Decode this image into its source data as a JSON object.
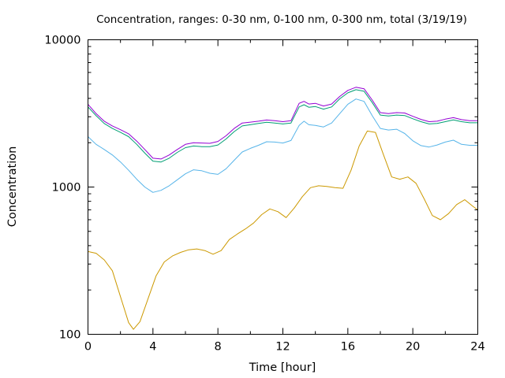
{
  "chart_data": {
    "type": "line",
    "title": "Concentration, ranges: 0-30 nm, 0-100 nm, 0-300 nm, total (3/19/19)",
    "xlabel": "Time [hour]",
    "ylabel": "Concentration",
    "xlim": [
      0,
      24
    ],
    "ylim": [
      100,
      10000
    ],
    "yscale": "log",
    "grid": false,
    "legend": "none",
    "x_ticks": [
      "0",
      "4",
      "8",
      "12",
      "16",
      "20",
      "24"
    ],
    "y_ticks": [
      "100",
      "1000",
      "10000"
    ],
    "series": [
      {
        "color": "#cc9900",
        "x": [
          0,
          0.5,
          1,
          1.5,
          2,
          2.5,
          2.8,
          3.2,
          3.7,
          4.2,
          4.7,
          5.2,
          5.7,
          6.2,
          6.7,
          7.2,
          7.7,
          8.2,
          8.7,
          9.2,
          9.7,
          10.2,
          10.7,
          11.2,
          11.7,
          12.2,
          12.7,
          13.2,
          13.7,
          14.2,
          14.7,
          15.2,
          15.7,
          16.2,
          16.7,
          17.2,
          17.7,
          18.2,
          18.7,
          19.2,
          19.7,
          20.2,
          20.7,
          21.2,
          21.7,
          22.2,
          22.7,
          23.2,
          23.7,
          24
        ],
        "y": [
          365,
          355,
          320,
          270,
          180,
          120,
          108,
          122,
          175,
          250,
          310,
          340,
          360,
          375,
          380,
          370,
          350,
          370,
          440,
          480,
          520,
          570,
          650,
          710,
          680,
          620,
          720,
          860,
          990,
          1020,
          1010,
          990,
          980,
          1300,
          1900,
          2400,
          2350,
          1650,
          1170,
          1130,
          1170,
          1060,
          830,
          640,
          600,
          660,
          760,
          820,
          740,
          700
        ]
      },
      {
        "color": "#56b4e9",
        "x": [
          0,
          0.5,
          1,
          1.5,
          2,
          2.5,
          3,
          3.5,
          4,
          4.5,
          5,
          5.5,
          6,
          6.5,
          7,
          7.5,
          8,
          8.5,
          9,
          9.5,
          10,
          10.5,
          11,
          11.5,
          12,
          12.5,
          13,
          13.3,
          13.6,
          14,
          14.5,
          15,
          15.5,
          16,
          16.5,
          17,
          17.5,
          18,
          18.5,
          19,
          19.5,
          20,
          20.5,
          21,
          21.5,
          22,
          22.5,
          23,
          23.5,
          24
        ],
        "y": [
          2200,
          1950,
          1800,
          1650,
          1480,
          1300,
          1130,
          1000,
          920,
          950,
          1020,
          1120,
          1230,
          1310,
          1290,
          1240,
          1220,
          1330,
          1520,
          1730,
          1830,
          1920,
          2030,
          2020,
          1990,
          2070,
          2620,
          2800,
          2650,
          2620,
          2560,
          2720,
          3150,
          3650,
          3960,
          3820,
          3050,
          2500,
          2440,
          2470,
          2310,
          2060,
          1910,
          1870,
          1930,
          2020,
          2080,
          1950,
          1920,
          1920
        ]
      },
      {
        "color": "#009e73",
        "x": [
          0,
          0.5,
          1,
          1.5,
          2,
          2.5,
          3,
          3.5,
          4,
          4.5,
          5,
          5.5,
          6,
          6.5,
          7,
          7.5,
          8,
          8.5,
          9,
          9.5,
          10,
          10.5,
          11,
          11.5,
          12,
          12.5,
          13,
          13.3,
          13.6,
          14,
          14.5,
          15,
          15.5,
          16,
          16.5,
          17,
          17.5,
          18,
          18.5,
          19,
          19.5,
          20,
          20.5,
          21,
          21.5,
          22,
          22.5,
          23,
          23.5,
          24
        ],
        "y": [
          3500,
          3050,
          2700,
          2500,
          2350,
          2200,
          1950,
          1700,
          1500,
          1480,
          1570,
          1720,
          1850,
          1900,
          1880,
          1880,
          1930,
          2120,
          2380,
          2600,
          2650,
          2700,
          2750,
          2720,
          2680,
          2720,
          3500,
          3620,
          3480,
          3520,
          3380,
          3500,
          3970,
          4360,
          4580,
          4470,
          3750,
          3080,
          3040,
          3080,
          3060,
          2910,
          2780,
          2680,
          2700,
          2780,
          2860,
          2780,
          2730,
          2730
        ]
      },
      {
        "color": "#9400d3",
        "x": [
          0,
          0.5,
          1,
          1.5,
          2,
          2.5,
          3,
          3.5,
          4,
          4.5,
          5,
          5.5,
          6,
          6.5,
          7,
          7.5,
          8,
          8.5,
          9,
          9.5,
          10,
          10.5,
          11,
          11.5,
          12,
          12.5,
          13,
          13.3,
          13.6,
          14,
          14.5,
          15,
          15.5,
          16,
          16.5,
          17,
          17.5,
          18,
          18.5,
          19,
          19.5,
          20,
          20.5,
          21,
          21.5,
          22,
          22.5,
          23,
          23.5,
          24
        ],
        "y": [
          3650,
          3150,
          2800,
          2600,
          2450,
          2300,
          2050,
          1800,
          1570,
          1550,
          1650,
          1800,
          1950,
          2000,
          1990,
          1980,
          2040,
          2230,
          2500,
          2720,
          2760,
          2800,
          2850,
          2820,
          2780,
          2820,
          3700,
          3820,
          3660,
          3700,
          3550,
          3660,
          4120,
          4530,
          4760,
          4650,
          3900,
          3200,
          3150,
          3200,
          3180,
          3020,
          2880,
          2780,
          2800,
          2890,
          2960,
          2870,
          2820,
          2820
        ]
      }
    ]
  }
}
